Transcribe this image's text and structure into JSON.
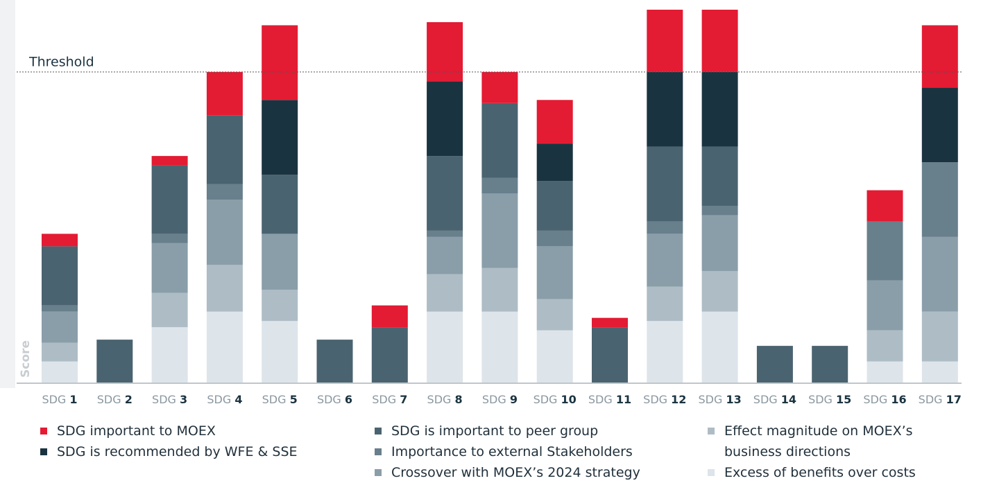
{
  "chart_data": {
    "type": "stacked_bar",
    "axis_label": "Score",
    "threshold": {
      "label": "Threshold",
      "value": 100
    },
    "categories": [
      "SDG 1",
      "SDG 2",
      "SDG 3",
      "SDG 4",
      "SDG 5",
      "SDG 6",
      "SDG 7",
      "SDG 8",
      "SDG 9",
      "SDG 10",
      "SDG 11",
      "SDG 12",
      "SDG 13",
      "SDG 14",
      "SDG 15",
      "SDG 16",
      "SDG 17"
    ],
    "ylim": [
      0,
      120
    ],
    "series": [
      {
        "name": "Excess of benefits over costs",
        "color": "#dde4ea",
        "values": [
          7,
          0,
          18,
          23,
          20,
          0,
          0,
          23,
          23,
          17,
          0,
          20,
          23,
          0,
          0,
          7,
          7
        ]
      },
      {
        "name": "Effect magnitude on MOEX’s business directions",
        "color": "#aebcc5",
        "values": [
          6,
          0,
          11,
          15,
          10,
          0,
          0,
          12,
          14,
          10,
          0,
          11,
          13,
          0,
          0,
          10,
          16
        ]
      },
      {
        "name": "Crossover with MOEX’s 2024 strategy",
        "color": "#8a9ea9",
        "values": [
          10,
          0,
          16,
          21,
          18,
          0,
          0,
          12,
          24,
          17,
          0,
          17,
          18,
          0,
          0,
          16,
          24
        ]
      },
      {
        "name": "Importance to external Stakeholders",
        "color": "#687f8c",
        "values": [
          2,
          0,
          3,
          5,
          0,
          0,
          0,
          2,
          5,
          5,
          0,
          4,
          3,
          0,
          0,
          19,
          24
        ]
      },
      {
        "name": "SDG is important to peer group",
        "color": "#4a6370",
        "values": [
          19,
          14,
          22,
          22,
          19,
          14,
          18,
          24,
          24,
          16,
          18,
          24,
          19,
          12,
          12,
          0,
          0
        ]
      },
      {
        "name": "SDG is recommended by WFE & SSE",
        "color": "#1a3340",
        "values": [
          0,
          0,
          0,
          0,
          24,
          0,
          0,
          24,
          0,
          12,
          0,
          24,
          24,
          0,
          0,
          0,
          24
        ]
      },
      {
        "name": "SDG important to MOEX",
        "color": "#e31b33",
        "values": [
          4,
          0,
          3,
          14,
          24,
          0,
          7,
          19,
          10,
          14,
          3,
          20,
          20,
          0,
          0,
          10,
          20
        ]
      }
    ]
  }
}
